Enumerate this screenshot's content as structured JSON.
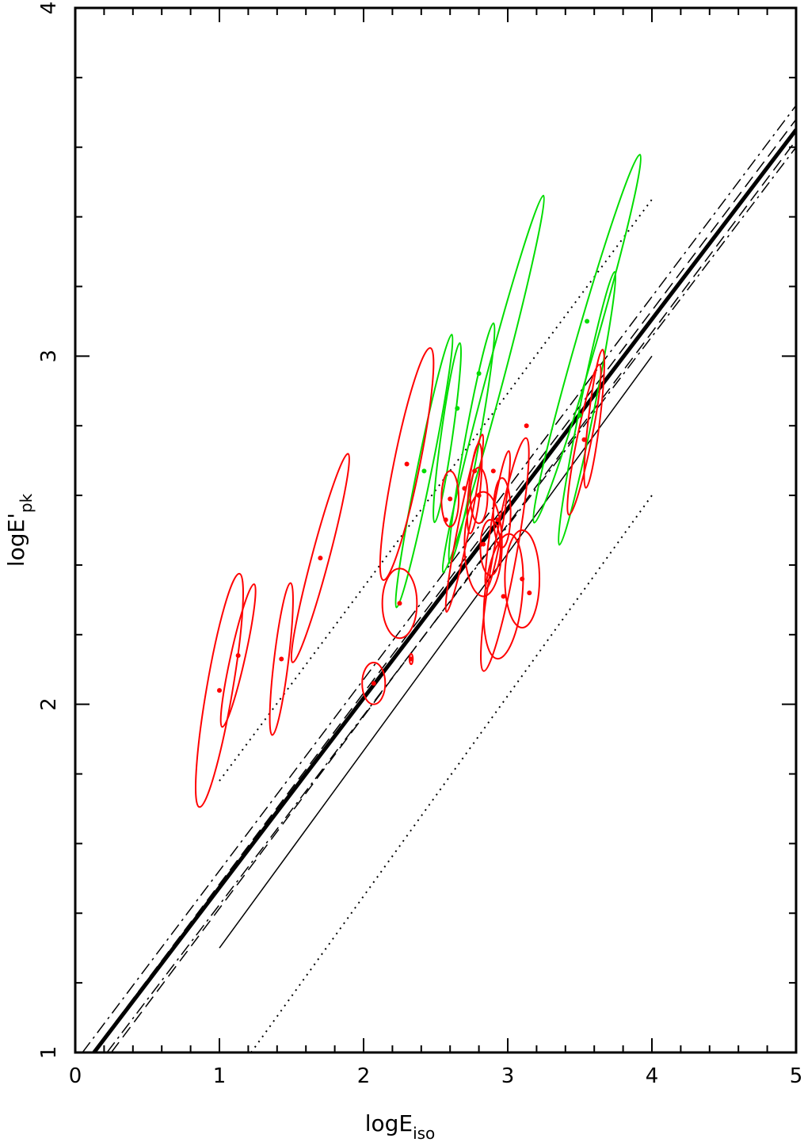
{
  "chart_data": {
    "type": "scatter",
    "xlabel": {
      "main": "logE",
      "sub": "iso"
    },
    "ylabel": {
      "main": "logE'",
      "sub": "pk"
    },
    "xlim": [
      0,
      5
    ],
    "ylim": [
      1,
      4
    ],
    "x_ticks": [
      "0",
      "1",
      "2",
      "3",
      "4",
      "5"
    ],
    "y_ticks": [
      "1",
      "2",
      "3",
      "4"
    ],
    "colors": {
      "red": "#ff0000",
      "green": "#00dd00",
      "black": "#000000"
    },
    "lines": [
      {
        "style": "thick",
        "x": [
          0.13,
          5.0
        ],
        "y": [
          1.0,
          3.65
        ]
      },
      {
        "style": "dashdot",
        "x": [
          0.05,
          5.0
        ],
        "y": [
          1.0,
          3.72
        ]
      },
      {
        "style": "dashdot",
        "x": [
          0.22,
          5.0
        ],
        "y": [
          1.0,
          3.6
        ]
      },
      {
        "style": "dashed",
        "x": [
          0.12,
          5.0
        ],
        "y": [
          1.0,
          3.68
        ]
      },
      {
        "style": "dashed",
        "x": [
          0.25,
          5.0
        ],
        "y": [
          1.0,
          3.62
        ]
      },
      {
        "style": "thin",
        "x": [
          1.0,
          4.0
        ],
        "y": [
          1.3,
          3.0
        ]
      },
      {
        "style": "dotted",
        "x": [
          1.0,
          4.0
        ],
        "y": [
          1.78,
          3.45
        ]
      },
      {
        "style": "dotted",
        "x": [
          1.22,
          4.0
        ],
        "y": [
          1.0,
          2.6
        ]
      }
    ],
    "red_points": [
      {
        "x": 1.0,
        "y": 2.04
      },
      {
        "x": 1.13,
        "y": 2.14
      },
      {
        "x": 1.43,
        "y": 2.13
      },
      {
        "x": 1.7,
        "y": 2.42
      },
      {
        "x": 2.07,
        "y": 2.06
      },
      {
        "x": 2.25,
        "y": 2.29
      },
      {
        "x": 2.3,
        "y": 2.69
      },
      {
        "x": 2.33,
        "y": 2.13
      },
      {
        "x": 2.57,
        "y": 2.53
      },
      {
        "x": 2.6,
        "y": 2.59
      },
      {
        "x": 2.7,
        "y": 2.62
      },
      {
        "x": 2.77,
        "y": 2.67
      },
      {
        "x": 2.8,
        "y": 2.6
      },
      {
        "x": 2.83,
        "y": 2.46
      },
      {
        "x": 2.9,
        "y": 2.67
      },
      {
        "x": 2.93,
        "y": 2.53
      },
      {
        "x": 2.97,
        "y": 2.31
      },
      {
        "x": 3.1,
        "y": 2.36
      },
      {
        "x": 3.13,
        "y": 2.8
      },
      {
        "x": 3.15,
        "y": 2.32
      },
      {
        "x": 3.53,
        "y": 2.76
      }
    ],
    "green_points": [
      {
        "x": 2.42,
        "y": 2.67
      },
      {
        "x": 2.65,
        "y": 2.85
      },
      {
        "x": 2.8,
        "y": 2.95
      },
      {
        "x": 3.5,
        "y": 2.83
      },
      {
        "x": 3.55,
        "y": 3.1
      }
    ],
    "red_ellipses": [
      {
        "cx": 1.0,
        "cy": 2.04,
        "rx": 0.09,
        "ry": 0.34,
        "tilt": 0.17
      },
      {
        "cx": 1.13,
        "cy": 2.14,
        "rx": 0.05,
        "ry": 0.21,
        "tilt": 0.22
      },
      {
        "cx": 1.43,
        "cy": 2.13,
        "rx": 0.05,
        "ry": 0.22,
        "tilt": 0.12
      },
      {
        "cx": 1.7,
        "cy": 2.42,
        "rx": 0.06,
        "ry": 0.31,
        "tilt": 0.26
      },
      {
        "cx": 2.07,
        "cy": 2.06,
        "rx": 0.08,
        "ry": 0.06,
        "tilt": 0
      },
      {
        "cx": 2.25,
        "cy": 2.29,
        "rx": 0.12,
        "ry": 0.1,
        "tilt": 0
      },
      {
        "cx": 2.3,
        "cy": 2.69,
        "rx": 0.09,
        "ry": 0.34,
        "tilt": 0.2
      },
      {
        "cx": 2.33,
        "cy": 2.13,
        "rx": 0.012,
        "ry": 0.015,
        "tilt": 0
      },
      {
        "cx": 2.6,
        "cy": 2.59,
        "rx": 0.06,
        "ry": 0.08,
        "tilt": 0
      },
      {
        "cx": 2.7,
        "cy": 2.52,
        "rx": 0.04,
        "ry": 0.26,
        "tilt": 0.2
      },
      {
        "cx": 2.77,
        "cy": 2.62,
        "rx": 0.04,
        "ry": 0.13,
        "tilt": 0.1
      },
      {
        "cx": 2.8,
        "cy": 2.6,
        "rx": 0.06,
        "ry": 0.08,
        "tilt": 0
      },
      {
        "cx": 2.83,
        "cy": 2.46,
        "rx": 0.13,
        "ry": 0.15,
        "tilt": 0
      },
      {
        "cx": 2.88,
        "cy": 2.45,
        "rx": 0.07,
        "ry": 0.08,
        "tilt": 0
      },
      {
        "cx": 2.93,
        "cy": 2.53,
        "rx": 0.04,
        "ry": 0.2,
        "tilt": 0.16
      },
      {
        "cx": 2.97,
        "cy": 2.31,
        "rx": 0.13,
        "ry": 0.18,
        "tilt": 0.1
      },
      {
        "cx": 3.1,
        "cy": 2.36,
        "rx": 0.12,
        "ry": 0.14,
        "tilt": 0
      },
      {
        "cx": 2.98,
        "cy": 2.43,
        "rx": 0.08,
        "ry": 0.34,
        "tilt": 0.18
      },
      {
        "cx": 2.96,
        "cy": 2.55,
        "rx": 0.06,
        "ry": 0.1,
        "tilt": 0
      },
      {
        "cx": 3.53,
        "cy": 2.76,
        "rx": 0.05,
        "ry": 0.22,
        "tilt": 0.2
      },
      {
        "cx": 3.6,
        "cy": 2.82,
        "rx": 0.04,
        "ry": 0.2,
        "tilt": 0.12
      }
    ],
    "green_ellipses": [
      {
        "cx": 2.42,
        "cy": 2.67,
        "rx": 0.05,
        "ry": 0.4,
        "tilt": 0.2
      },
      {
        "cx": 2.58,
        "cy": 2.78,
        "rx": 0.04,
        "ry": 0.26,
        "tilt": 0.14
      },
      {
        "cx": 2.75,
        "cy": 2.75,
        "rx": 0.05,
        "ry": 0.35,
        "tilt": 0.18
      },
      {
        "cx": 2.9,
        "cy": 2.92,
        "rx": 0.06,
        "ry": 0.56,
        "tilt": 0.26
      },
      {
        "cx": 3.55,
        "cy": 3.05,
        "rx": 0.07,
        "ry": 0.55,
        "tilt": 0.28
      },
      {
        "cx": 3.55,
        "cy": 2.85,
        "rx": 0.05,
        "ry": 0.4,
        "tilt": 0.2
      }
    ]
  }
}
